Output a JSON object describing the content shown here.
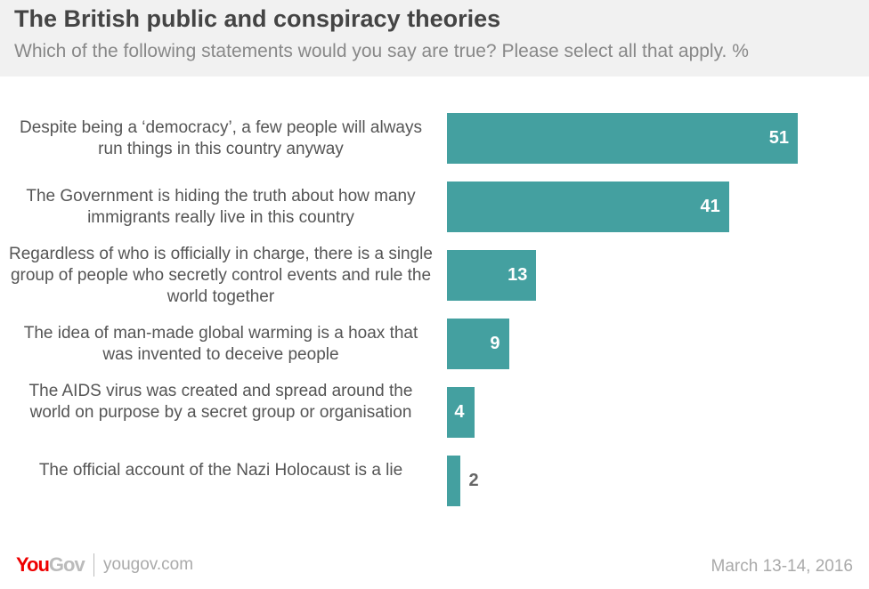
{
  "header": {
    "title": "The British public and conspiracy theories",
    "subtitle": "Which of the following statements would you say are true? Please select all that apply. %"
  },
  "chart_data": {
    "type": "bar",
    "orientation": "horizontal",
    "title": "The British public and conspiracy theories",
    "categories": [
      "Despite being a ‘democracy’, a few people will always run things in this country anyway",
      "The Government is hiding the truth about how many immigrants really live in this country",
      "Regardless of who is officially in charge, there is a single group of people who secretly control events and rule the world together",
      "The idea of man-made global warming is a hoax that was invented to deceive people",
      "The AIDS virus was created and spread around the world on purpose by a secret group or organisation",
      "The official account of the Nazi Holocaust is a lie"
    ],
    "values": [
      51,
      41,
      13,
      9,
      4,
      2
    ],
    "unit": "%",
    "color": "#44a0a0"
  },
  "footer": {
    "logo_you": "You",
    "logo_gov": "Gov",
    "site": "yougov.com",
    "date": "March 13-14, 2016"
  }
}
